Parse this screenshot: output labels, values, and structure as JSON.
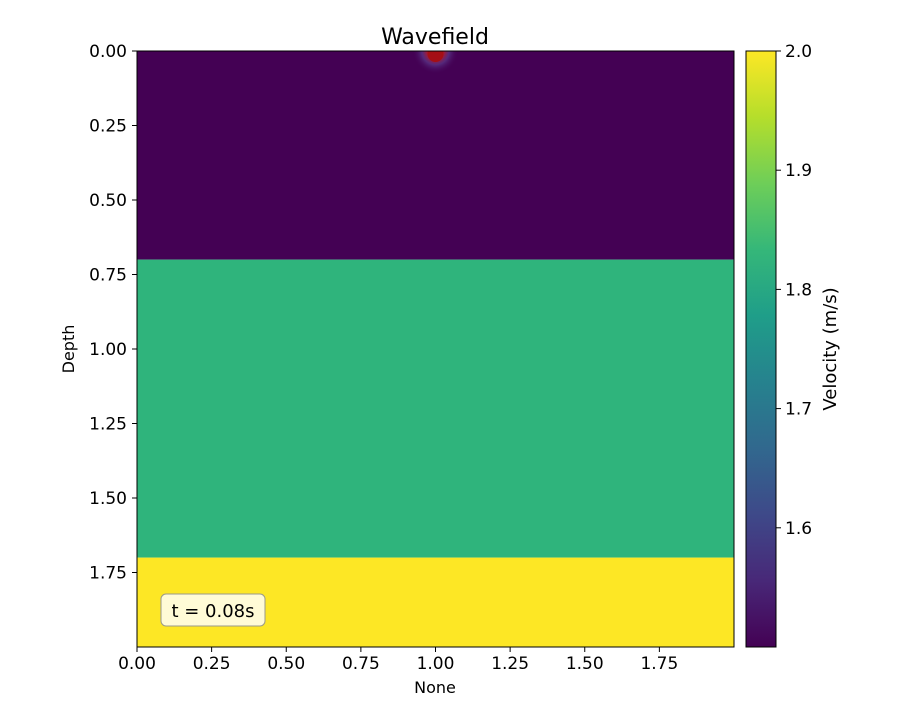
{
  "chart_data": {
    "type": "heatmap",
    "title": "Wavefield",
    "xlabel": "None",
    "ylabel": "Depth",
    "xlim": [
      0,
      2
    ],
    "ylim": [
      0,
      2
    ],
    "y_inverted": true,
    "xticks": [
      0,
      0.25,
      0.5,
      0.75,
      1.0,
      1.25,
      1.5,
      1.75
    ],
    "xtick_labels": [
      "0.00",
      "0.25",
      "0.50",
      "0.75",
      "1.00",
      "1.25",
      "1.50",
      "1.75"
    ],
    "yticks": [
      0,
      0.25,
      0.5,
      0.75,
      1.0,
      1.25,
      1.5,
      1.75
    ],
    "ytick_labels": [
      "0.00",
      "0.25",
      "0.50",
      "0.75",
      "1.00",
      "1.25",
      "1.50",
      "1.75"
    ],
    "layers": [
      {
        "depth_top": 0.0,
        "depth_bottom": 0.7,
        "velocity": 1.5,
        "color": "#440154"
      },
      {
        "depth_top": 0.7,
        "depth_bottom": 1.7,
        "velocity": 1.8,
        "color": "#2fb47c"
      },
      {
        "depth_top": 1.7,
        "depth_bottom": 2.0,
        "velocity": 2.0,
        "color": "#fde725"
      }
    ],
    "source": {
      "x": 1.0,
      "depth": 0.0,
      "color": "#b2182b"
    },
    "annotation": "t = 0.08s",
    "colorbar": {
      "label": "Velocity (m/s)",
      "min": 1.5,
      "max": 2.0,
      "ticks": [
        1.6,
        1.7,
        1.8,
        1.9,
        2.0
      ],
      "tick_labels": [
        "1.6",
        "1.7",
        "1.8",
        "1.9",
        "2.0"
      ],
      "colormap": [
        "#440154",
        "#482878",
        "#3e4989",
        "#31688e",
        "#26828e",
        "#1f9e89",
        "#35b779",
        "#6ece58",
        "#b5de2b",
        "#fde725"
      ]
    },
    "grid": false
  }
}
